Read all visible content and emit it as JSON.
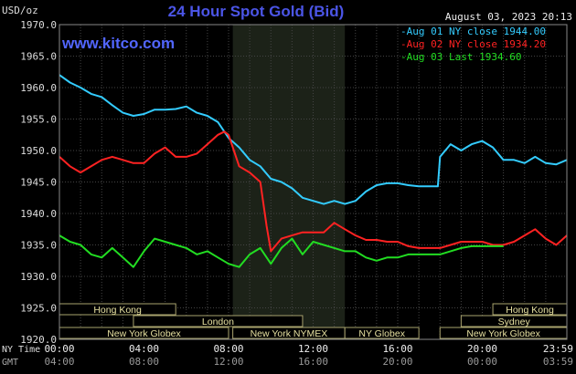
{
  "chart_data": {
    "type": "line",
    "title": "24 Hour Spot Gold (Bid)",
    "currency_label": "USD/oz",
    "timestamp": "August 03, 2023 20:13",
    "website": "www.kitco.com",
    "ylim": [
      1920.0,
      1970.0
    ],
    "y_ticks": [
      "1970.0",
      "1965.0",
      "1960.0",
      "1955.0",
      "1950.0",
      "1945.0",
      "1940.0",
      "1935.0",
      "1930.0",
      "1925.0",
      "1920.0"
    ],
    "x_row_labels": {
      "ny": "NY Time",
      "gmt": "GMT"
    },
    "x_ticks_ny": [
      "00:00",
      "04:00",
      "08:00",
      "12:00",
      "16:00",
      "20:00",
      "23:59"
    ],
    "x_ticks_gmt": [
      "04:00",
      "08:00",
      "12:00",
      "16:00",
      "20:00",
      "00:00",
      "03:59"
    ],
    "x_range_hours": [
      0,
      24
    ],
    "grid": true,
    "legend_position": "top-right",
    "sessions": [
      {
        "label": "Hong Kong",
        "start": 0,
        "end": 5.5,
        "row": 0
      },
      {
        "label": "London",
        "start": 3.5,
        "end": 11.5,
        "row": 1
      },
      {
        "label": "New York Globex",
        "start": 0,
        "end": 8.0,
        "row": 2
      },
      {
        "label": "New York NYMEX",
        "start": 8.2,
        "end": 13.5,
        "row": 2
      },
      {
        "label": "NY Globex",
        "start": 13.5,
        "end": 17.0,
        "row": 2
      },
      {
        "label": "Hong Kong",
        "start": 20.5,
        "end": 24,
        "row": 0
      },
      {
        "label": "Sydney",
        "start": 19.0,
        "end": 24,
        "row": 1
      },
      {
        "label": "New York Globex",
        "start": 18.0,
        "end": 24,
        "row": 2
      }
    ],
    "nymex_shade": [
      8.2,
      13.5
    ],
    "series": [
      {
        "name": "Aug 01 NY close 1944.00",
        "color": "#33ccff",
        "x": [
          0,
          0.5,
          1,
          1.5,
          2,
          2.5,
          3,
          3.5,
          4,
          4.5,
          5,
          5.5,
          6,
          6.5,
          7,
          7.5,
          8,
          8.5,
          9,
          9.5,
          10,
          10.5,
          11,
          11.5,
          12,
          12.5,
          13,
          13.5,
          14,
          14.5,
          15,
          15.5,
          16,
          16.5,
          17,
          17.5,
          17.9,
          18,
          18.5,
          19,
          19.5,
          20,
          20.5,
          21,
          21.5,
          22,
          22.5,
          23,
          23.5,
          24
        ],
        "values": [
          1962.0,
          1960.8,
          1960.0,
          1959.0,
          1958.5,
          1957.2,
          1956.0,
          1955.5,
          1955.8,
          1956.5,
          1956.5,
          1956.6,
          1957.0,
          1956.0,
          1955.5,
          1954.5,
          1952.0,
          1950.5,
          1948.5,
          1947.5,
          1945.5,
          1945.0,
          1944.0,
          1942.5,
          1942.0,
          1941.5,
          1942.0,
          1941.5,
          1942.0,
          1943.5,
          1944.5,
          1944.8,
          1944.8,
          1944.5,
          1944.3,
          1944.3,
          1944.3,
          1949.0,
          1951.0,
          1950.0,
          1951.0,
          1951.5,
          1950.5,
          1948.5,
          1948.5,
          1948.0,
          1949.0,
          1948.0,
          1947.8,
          1948.5
        ]
      },
      {
        "name": "Aug 02 NY close 1934.20",
        "color": "#ff2222",
        "x": [
          0,
          0.5,
          1,
          1.5,
          2,
          2.5,
          3,
          3.5,
          4,
          4.5,
          5,
          5.5,
          6,
          6.5,
          7,
          7.5,
          7.8,
          8,
          8.5,
          9,
          9.5,
          9.8,
          10,
          10.5,
          11,
          11.5,
          12,
          12.5,
          13,
          13.5,
          14,
          14.5,
          15,
          15.5,
          16,
          16.5,
          17,
          17.5,
          18,
          18.5,
          19,
          19.5,
          20,
          20.5,
          21,
          21.5,
          22,
          22.5,
          23,
          23.5,
          24
        ],
        "values": [
          1949.0,
          1947.5,
          1946.5,
          1947.5,
          1948.5,
          1949.0,
          1948.5,
          1948.0,
          1948.0,
          1949.5,
          1950.5,
          1949.0,
          1949.0,
          1949.5,
          1951.0,
          1952.5,
          1953.0,
          1952.5,
          1947.5,
          1946.5,
          1945.0,
          1938.0,
          1934.0,
          1936.0,
          1936.5,
          1937.0,
          1937.0,
          1937.0,
          1938.5,
          1937.5,
          1936.5,
          1935.8,
          1935.8,
          1935.5,
          1935.5,
          1934.8,
          1934.5,
          1934.5,
          1934.5,
          1935.0,
          1935.5,
          1935.5,
          1935.5,
          1935.0,
          1935.0,
          1935.5,
          1936.5,
          1937.5,
          1936.0,
          1935.0,
          1936.5
        ]
      },
      {
        "name": "Aug 03 Last 1934.60",
        "color": "#22dd22",
        "x": [
          0,
          0.5,
          1,
          1.5,
          2,
          2.5,
          3,
          3.5,
          4,
          4.5,
          5,
          5.5,
          6,
          6.5,
          7,
          7.5,
          8,
          8.5,
          9,
          9.5,
          10,
          10.5,
          11,
          11.5,
          12,
          12.5,
          13,
          13.5,
          14,
          14.5,
          15,
          15.5,
          16,
          16.5,
          17,
          17.5,
          18,
          18.5,
          19,
          19.5,
          20,
          20.5,
          21
        ],
        "values": [
          1936.5,
          1935.5,
          1935.0,
          1933.5,
          1933.0,
          1934.5,
          1933.0,
          1931.5,
          1934.0,
          1936.0,
          1935.5,
          1935.0,
          1934.5,
          1933.5,
          1934.0,
          1933.0,
          1932.0,
          1931.5,
          1933.5,
          1934.5,
          1932.0,
          1934.5,
          1936.0,
          1933.5,
          1935.5,
          1935.0,
          1934.5,
          1934.0,
          1934.0,
          1933.0,
          1932.5,
          1933.0,
          1933.0,
          1933.5,
          1933.5,
          1933.5,
          1933.5,
          1934.0,
          1934.5,
          1934.8,
          1934.8,
          1934.8,
          1934.8
        ]
      }
    ]
  }
}
